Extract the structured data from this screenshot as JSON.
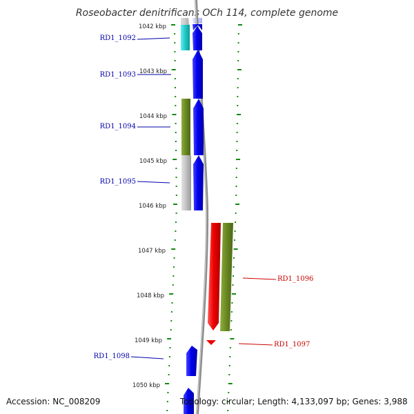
{
  "title": "Roseobacter denitrificans OCh 114, complete genome",
  "footer": {
    "accession": "Accession: NC_008209",
    "summary": "Topology: circular; Length: 4,133,097 bp; Genes: 3,988"
  },
  "ruler": {
    "labels": [
      "1042 kbp",
      "1043 kbp",
      "1044 kbp",
      "1045 kbp",
      "1046 kbp",
      "1047 kbp",
      "1048 kbp",
      "1049 kbp",
      "1050 kbp"
    ]
  },
  "colors": {
    "blue": "#0000ee",
    "cyan": "#22cccc",
    "olive": "#6b8a22",
    "gray": "#c4c4c4",
    "red": "#ee0000",
    "tick": "#118811",
    "backbone": "#888888",
    "label_blue": "#0000aa",
    "label_red": "#cc0000"
  },
  "genes": [
    {
      "id": "RD1_1092",
      "strand": "left",
      "color": "cyan",
      "label": "RD1_1092",
      "label_color": "label_blue"
    },
    {
      "id": "RD1_1093",
      "strand": "left",
      "color": "blue",
      "label": "RD1_1093",
      "label_color": "label_blue"
    },
    {
      "id": "RD1_1094",
      "strand": "left",
      "color": "olive",
      "label": "RD1_1094",
      "label_color": "label_blue"
    },
    {
      "id": "RD1_1095",
      "strand": "left",
      "color": "gray",
      "label": "RD1_1095",
      "label_color": "label_blue"
    },
    {
      "id": "RD1_1096",
      "strand": "right",
      "color": "red",
      "label": "RD1_1096",
      "label_color": "label_red"
    },
    {
      "id": "RD1_1097",
      "strand": "right",
      "color": "olive",
      "label": "RD1_1097",
      "label_color": "label_red"
    },
    {
      "id": "RD1_1098",
      "strand": "left",
      "color": "blue",
      "label": "RD1_1098",
      "label_color": "label_blue"
    }
  ]
}
